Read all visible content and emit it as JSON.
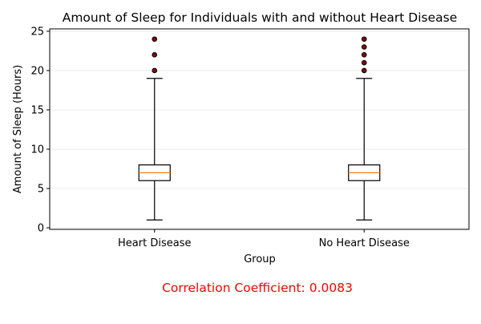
{
  "chart_data": {
    "type": "boxplot",
    "title": "Amount of Sleep for Individuals with and without Heart Disease",
    "xlabel": "Group",
    "ylabel": "Amount of Sleep (Hours)",
    "ylim": [
      -0.2,
      25.3
    ],
    "yticks": [
      0,
      5,
      10,
      15,
      20,
      25
    ],
    "grid": "horizontal",
    "categories": [
      "Heart Disease",
      "No Heart Disease"
    ],
    "boxes": [
      {
        "category": "Heart Disease",
        "whisker_low": 1,
        "q1": 6,
        "median": 7,
        "q3": 8,
        "whisker_high": 19,
        "outliers": [
          20,
          22,
          24
        ]
      },
      {
        "category": "No Heart Disease",
        "whisker_low": 1,
        "q1": 6,
        "median": 7,
        "q3": 8,
        "whisker_high": 19,
        "outliers": [
          20,
          21,
          22,
          23,
          24
        ]
      }
    ],
    "colors": {
      "box": "#000000",
      "median": "#ff7f0e",
      "outlier_fill": "#8b0000",
      "outlier_edge": "#000000",
      "grid": "#e6e6e6"
    }
  },
  "annotation": {
    "text": "Correlation Coefficient: 0.0083",
    "color": "#ff0000"
  }
}
